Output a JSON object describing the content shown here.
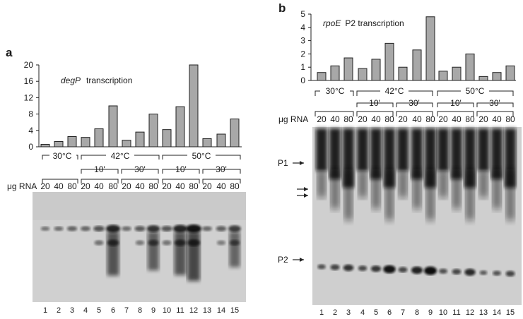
{
  "figure": {
    "panel_a": {
      "letter": "a",
      "title_gene": "degP",
      "title_rest": "transcription",
      "temp_labels": [
        "30°C",
        "42°C",
        "50°C"
      ],
      "time_labels": [
        "10'",
        "30'",
        "10'",
        "30'"
      ],
      "rna_label": "μg RNA",
      "rna_amounts": [
        "20",
        "40",
        "80",
        "20",
        "40",
        "80",
        "20",
        "40",
        "80",
        "20",
        "40",
        "80",
        "20",
        "40",
        "80"
      ],
      "lane_numbers": [
        "1",
        "2",
        "3",
        "4",
        "5",
        "6",
        "7",
        "8",
        "9",
        "10",
        "11",
        "12",
        "13",
        "14",
        "15"
      ]
    },
    "panel_b": {
      "letter": "b",
      "title_gene": "rpoE",
      "title_rest": "P2 transcription",
      "temp_labels": [
        "30°C",
        "42°C",
        "50°C"
      ],
      "time_labels": [
        "10'",
        "30'",
        "10'",
        "30'"
      ],
      "rna_label": "μg RNA",
      "rna_amounts": [
        "20",
        "40",
        "80",
        "20",
        "40",
        "80",
        "20",
        "40",
        "80",
        "20",
        "40",
        "80",
        "20",
        "40",
        "80"
      ],
      "lane_numbers": [
        "1",
        "2",
        "3",
        "4",
        "5",
        "6",
        "7",
        "8",
        "9",
        "10",
        "11",
        "12",
        "13",
        "14",
        "15"
      ],
      "band_labels": [
        "P1",
        "P2"
      ]
    }
  },
  "chart_data": [
    {
      "type": "bar",
      "title": "degP transcription",
      "categories": [
        "1",
        "2",
        "3",
        "4",
        "5",
        "6",
        "7",
        "8",
        "9",
        "10",
        "11",
        "12",
        "13",
        "14",
        "15"
      ],
      "values": [
        0.6,
        1.3,
        2.5,
        2.3,
        4.4,
        10,
        1.6,
        3.6,
        8,
        4.2,
        9.8,
        20,
        2,
        3.1,
        6.8
      ],
      "ylim": [
        0,
        20
      ],
      "yticks": [
        0,
        4,
        8,
        12,
        16,
        20
      ]
    },
    {
      "type": "bar",
      "title": "rpoE P2 transcription",
      "categories": [
        "1",
        "2",
        "3",
        "4",
        "5",
        "6",
        "7",
        "8",
        "9",
        "10",
        "11",
        "12",
        "13",
        "14",
        "15"
      ],
      "values": [
        0.6,
        1.1,
        1.7,
        0.9,
        1.6,
        2.8,
        1.0,
        2.3,
        4.8,
        0.7,
        1.0,
        2.0,
        0.3,
        0.6,
        1.1
      ],
      "ylim": [
        0,
        5
      ],
      "yticks": [
        0,
        1,
        2,
        3,
        4,
        5
      ]
    }
  ]
}
